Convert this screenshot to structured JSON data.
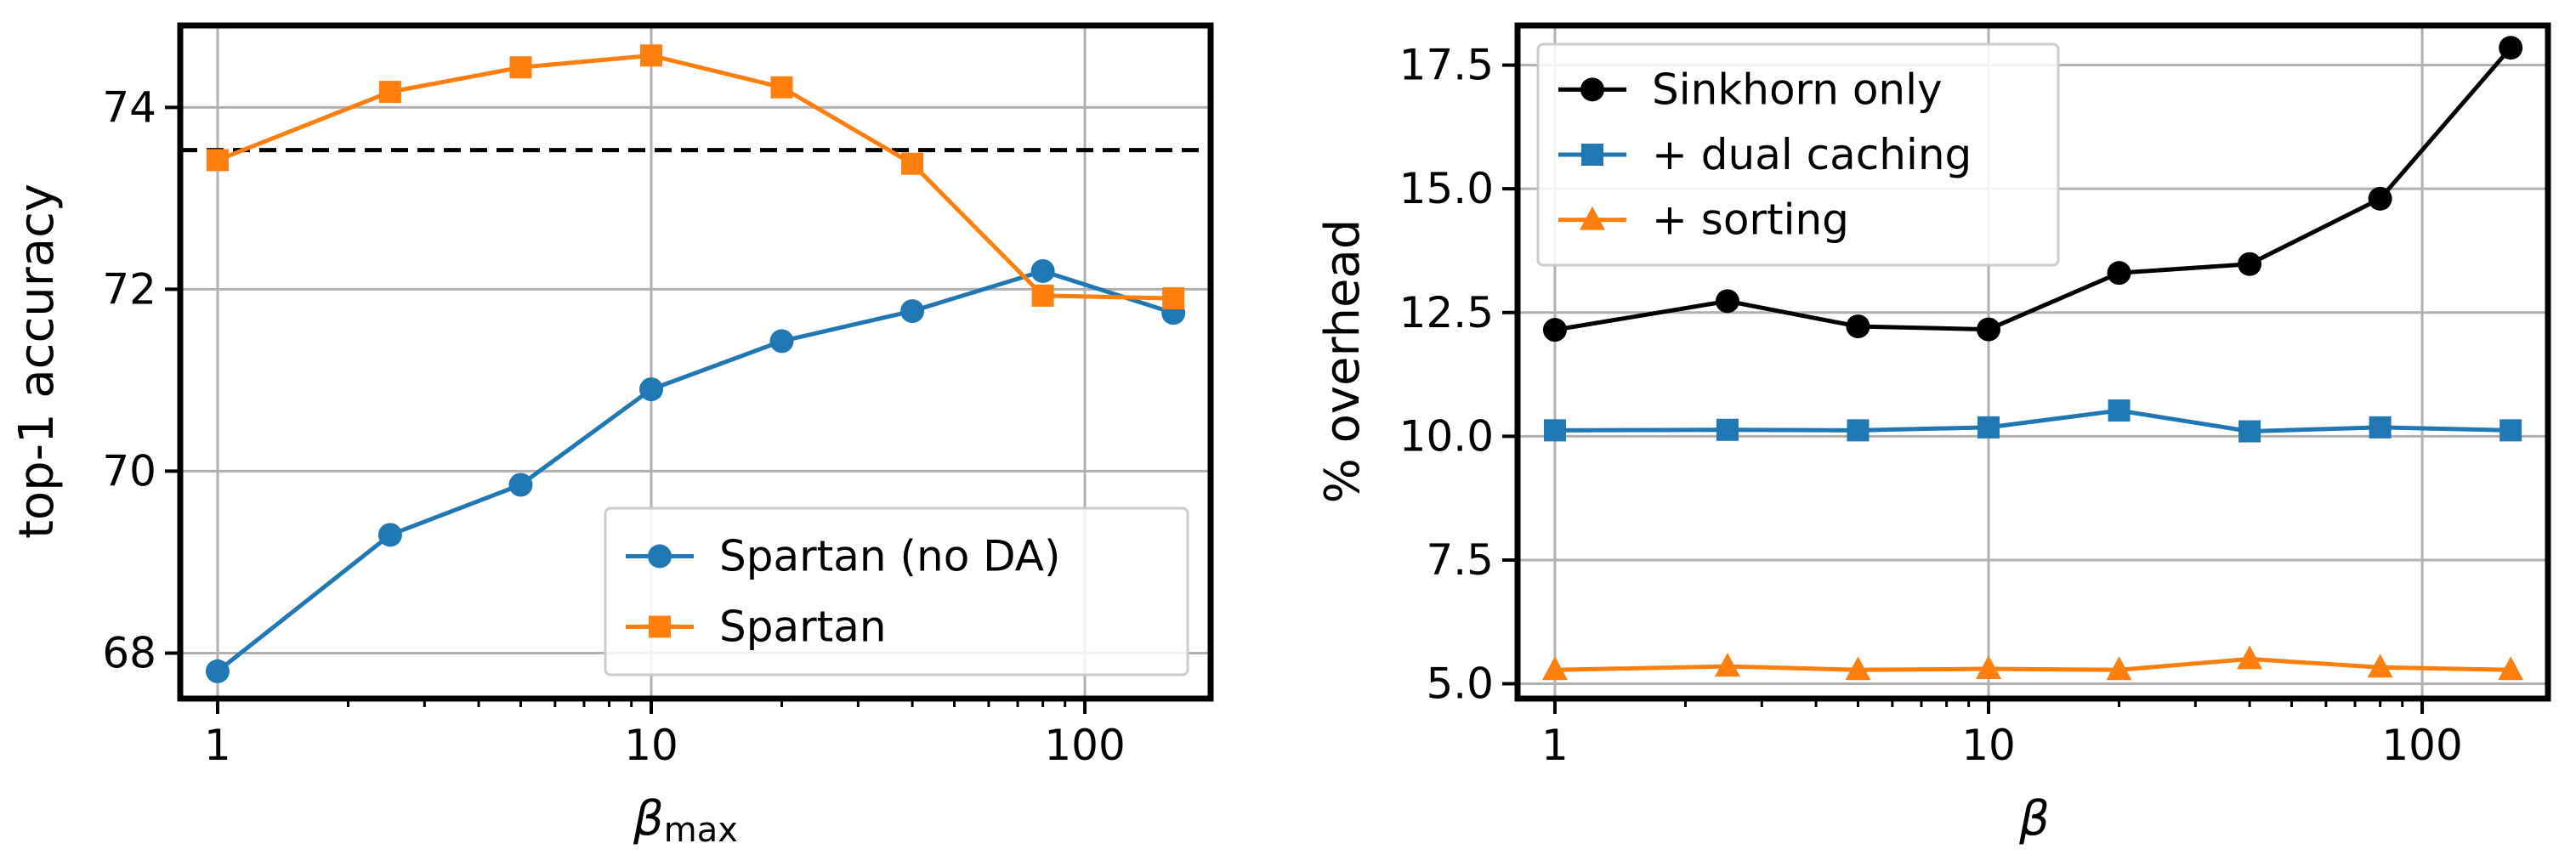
{
  "chart_data": [
    {
      "type": "line",
      "xscale": "log",
      "xlabel": "β",
      "xlabel_sub": "max",
      "ylabel": "top-1 accuracy",
      "xlim": [
        0.82,
        195
      ],
      "ylim": [
        67.5,
        74.9
      ],
      "xticks": [
        1,
        10,
        100
      ],
      "xtick_labels": [
        "1",
        "10",
        "100"
      ],
      "yticks": [
        68,
        70,
        72,
        74
      ],
      "ytick_labels": [
        "68",
        "70",
        "72",
        "74"
      ],
      "grid": true,
      "legend_position": "lower-right",
      "reference_line": {
        "y": 73.53,
        "style": "dashed",
        "color": "#000000"
      },
      "series": [
        {
          "name": "Spartan (no DA)",
          "color": "#1f77b4",
          "marker": "circle",
          "x": [
            1,
            2.5,
            5,
            10,
            20,
            40,
            80,
            160
          ],
          "y": [
            67.8,
            69.3,
            69.85,
            70.9,
            71.43,
            71.76,
            72.2,
            71.74
          ]
        },
        {
          "name": "Spartan",
          "color": "#ff7f0e",
          "marker": "square",
          "x": [
            1,
            2.5,
            5,
            10,
            20,
            40,
            80,
            160
          ],
          "y": [
            73.42,
            74.17,
            74.44,
            74.57,
            74.22,
            73.38,
            71.93,
            71.9
          ]
        }
      ]
    },
    {
      "type": "line",
      "xscale": "log",
      "xlabel": "β",
      "xlabel_sub": "",
      "ylabel": "% overhead",
      "xlim": [
        0.82,
        195
      ],
      "ylim": [
        4.7,
        18.3
      ],
      "xticks": [
        1,
        10,
        100
      ],
      "xtick_labels": [
        "1",
        "10",
        "100"
      ],
      "yticks": [
        5.0,
        7.5,
        10.0,
        12.5,
        15.0,
        17.5
      ],
      "ytick_labels": [
        "5.0",
        "7.5",
        "10.0",
        "12.5",
        "15.0",
        "17.5"
      ],
      "grid": true,
      "legend_position": "upper-left",
      "series": [
        {
          "name": "Sinkhorn only",
          "color": "#000000",
          "marker": "circle",
          "x": [
            1,
            2.5,
            5,
            10,
            20,
            40,
            80,
            160
          ],
          "y": [
            12.15,
            12.73,
            12.22,
            12.16,
            13.3,
            13.48,
            14.8,
            17.85
          ]
        },
        {
          "name": "+ dual caching",
          "color": "#1f77b4",
          "marker": "square",
          "x": [
            1,
            2.5,
            5,
            10,
            20,
            40,
            80,
            160
          ],
          "y": [
            10.12,
            10.13,
            10.12,
            10.18,
            10.52,
            10.1,
            10.18,
            10.12
          ]
        },
        {
          "name": "+ sorting",
          "color": "#ff7f0e",
          "marker": "triangle",
          "x": [
            1,
            2.5,
            5,
            10,
            20,
            40,
            80,
            160
          ],
          "y": [
            5.28,
            5.35,
            5.28,
            5.3,
            5.28,
            5.5,
            5.33,
            5.28
          ]
        }
      ]
    }
  ]
}
